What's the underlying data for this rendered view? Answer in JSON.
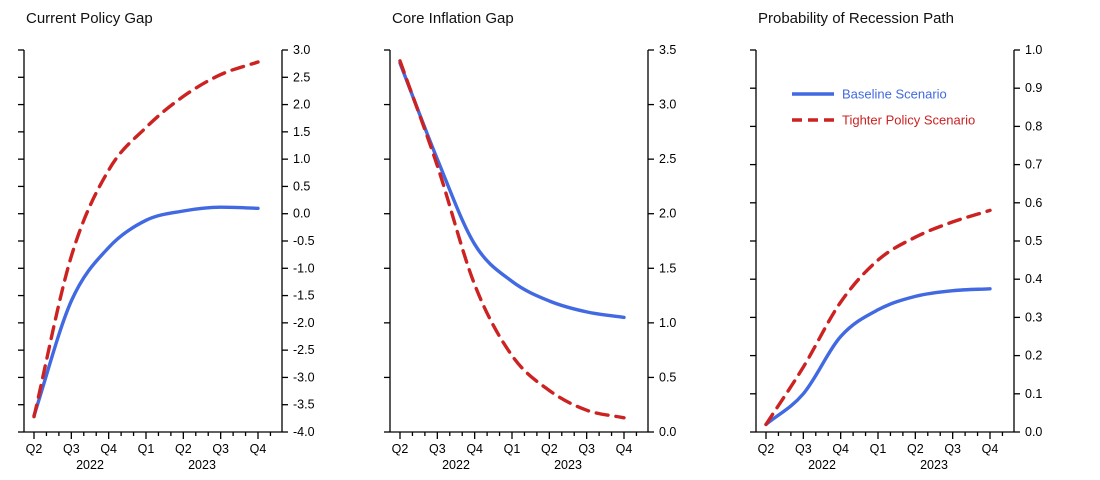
{
  "figure": {
    "background": "#ffffff",
    "axis_color": "#000000",
    "accent_blue": "#4169e1",
    "accent_red": "#cc2222"
  },
  "chart_data": [
    {
      "type": "line",
      "title": "Current Policy Gap",
      "categories": [
        "Q2",
        "Q3",
        "Q4",
        "Q1",
        "Q2",
        "Q3",
        "Q4"
      ],
      "year_labels": [
        {
          "label": "2022",
          "position": 1.5
        },
        {
          "label": "2023",
          "position": 4.5
        }
      ],
      "ylim": [
        -4.0,
        3.0
      ],
      "ytick_step": 0.5,
      "ytick_decimals": 1,
      "yaxis_side": "right",
      "grid": false,
      "show_legend": false,
      "series": [
        {
          "name": "Baseline Scenario",
          "style": "solid",
          "color": "#4169e1",
          "values": [
            -3.7,
            -1.6,
            -0.62,
            -0.12,
            0.05,
            0.12,
            0.1
          ]
        },
        {
          "name": "Tighter Policy Scenario",
          "style": "dashed",
          "color": "#cc2222",
          "values": [
            -3.72,
            -0.78,
            0.8,
            1.58,
            2.15,
            2.55,
            2.78
          ]
        }
      ]
    },
    {
      "type": "line",
      "title": "Core Inflation Gap",
      "categories": [
        "Q2",
        "Q3",
        "Q4",
        "Q1",
        "Q2",
        "Q3",
        "Q4"
      ],
      "year_labels": [
        {
          "label": "2022",
          "position": 1.5
        },
        {
          "label": "2023",
          "position": 4.5
        }
      ],
      "ylim": [
        0.0,
        3.5
      ],
      "ytick_step": 0.5,
      "ytick_decimals": 1,
      "yaxis_side": "right",
      "grid": false,
      "show_legend": false,
      "series": [
        {
          "name": "Baseline Scenario",
          "style": "solid",
          "color": "#4169e1",
          "values": [
            3.38,
            2.5,
            1.72,
            1.38,
            1.2,
            1.1,
            1.05
          ]
        },
        {
          "name": "Tighter Policy Scenario",
          "style": "dashed",
          "color": "#cc2222",
          "values": [
            3.4,
            2.44,
            1.35,
            0.7,
            0.38,
            0.2,
            0.13
          ]
        }
      ]
    },
    {
      "type": "line",
      "title": "Probability of Recession Path",
      "categories": [
        "Q2",
        "Q3",
        "Q4",
        "Q1",
        "Q2",
        "Q3",
        "Q4"
      ],
      "year_labels": [
        {
          "label": "2022",
          "position": 1.5
        },
        {
          "label": "2023",
          "position": 4.5
        }
      ],
      "ylim": [
        0.0,
        1.0
      ],
      "ytick_step": 0.1,
      "ytick_decimals": 1,
      "yaxis_side": "right",
      "grid": false,
      "show_legend": true,
      "legend_labels": [
        "Baseline Scenario",
        "Tighter Policy Scenario"
      ],
      "series": [
        {
          "name": "Baseline Scenario",
          "style": "solid",
          "color": "#4169e1",
          "values": [
            0.02,
            0.1,
            0.25,
            0.32,
            0.355,
            0.37,
            0.375
          ]
        },
        {
          "name": "Tighter Policy Scenario",
          "style": "dashed",
          "color": "#cc2222",
          "values": [
            0.02,
            0.17,
            0.34,
            0.45,
            0.51,
            0.55,
            0.58
          ]
        }
      ]
    }
  ]
}
